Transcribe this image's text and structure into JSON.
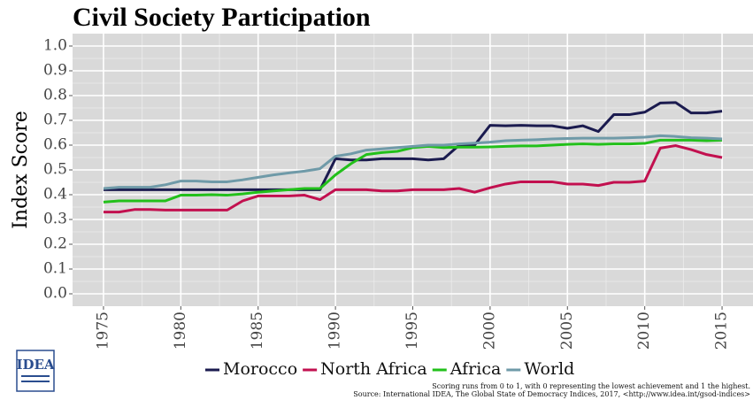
{
  "chart_data": {
    "type": "line",
    "title": "Civil Society Participation",
    "y_label": "Index Score",
    "logo": "IDEA",
    "notes": [
      "Scoring runs from 0 to 1, with 0 representing the lowest achievement and 1 the highest.",
      "Source: International IDEA, The Global State of Democracy Indices, 2017, <http://www.idea.int/gsod-indices>"
    ],
    "x": [
      1975,
      1976,
      1977,
      1978,
      1979,
      1980,
      1981,
      1982,
      1983,
      1984,
      1985,
      1986,
      1987,
      1988,
      1989,
      1990,
      1991,
      1992,
      1993,
      1994,
      1995,
      1996,
      1997,
      1998,
      1999,
      2000,
      2001,
      2002,
      2003,
      2004,
      2005,
      2006,
      2007,
      2008,
      2009,
      2010,
      2011,
      2012,
      2013,
      2014,
      2015
    ],
    "xlim": [
      1973,
      2017
    ],
    "xticks": [
      1975,
      1980,
      1985,
      1990,
      1995,
      2000,
      2005,
      2010,
      2015
    ],
    "ylim": [
      -0.05,
      1.05
    ],
    "yticks": [
      {
        "value": 0,
        "label": "0.0"
      },
      0.1,
      0.2,
      0.3,
      0.4,
      0.5,
      0.6,
      0.7,
      0.8,
      0.9,
      {
        "value": 1,
        "label": "1.0"
      }
    ],
    "grid": true,
    "legend": "bottom",
    "series": [
      {
        "name": "Morocco",
        "color": "#1b1b4f",
        "values": [
          0.42,
          0.42,
          0.42,
          0.42,
          0.42,
          0.42,
          0.42,
          0.42,
          0.42,
          0.42,
          0.42,
          0.42,
          0.42,
          0.42,
          0.42,
          0.545,
          0.54,
          0.54,
          0.545,
          0.545,
          0.545,
          0.54,
          0.545,
          0.6,
          0.6,
          0.68,
          0.678,
          0.68,
          0.678,
          0.678,
          0.668,
          0.678,
          0.655,
          0.723,
          0.723,
          0.733,
          0.77,
          0.772,
          0.73,
          0.73,
          0.737
        ]
      },
      {
        "name": "North Africa",
        "color": "#c2104f",
        "values": [
          0.33,
          0.33,
          0.34,
          0.34,
          0.338,
          0.338,
          0.338,
          0.338,
          0.338,
          0.375,
          0.395,
          0.395,
          0.395,
          0.398,
          0.38,
          0.42,
          0.42,
          0.42,
          0.415,
          0.415,
          0.42,
          0.42,
          0.42,
          0.425,
          0.41,
          0.428,
          0.443,
          0.452,
          0.452,
          0.452,
          0.443,
          0.443,
          0.437,
          0.45,
          0.45,
          0.455,
          0.588,
          0.598,
          0.582,
          0.562,
          0.55
        ]
      },
      {
        "name": "Africa",
        "color": "#22c01a",
        "values": [
          0.37,
          0.375,
          0.375,
          0.375,
          0.375,
          0.398,
          0.398,
          0.4,
          0.398,
          0.403,
          0.41,
          0.415,
          0.42,
          0.425,
          0.425,
          0.48,
          0.525,
          0.562,
          0.57,
          0.575,
          0.59,
          0.595,
          0.59,
          0.592,
          0.592,
          0.593,
          0.595,
          0.597,
          0.597,
          0.6,
          0.603,
          0.605,
          0.603,
          0.605,
          0.605,
          0.607,
          0.62,
          0.62,
          0.62,
          0.618,
          0.62
        ]
      },
      {
        "name": "World",
        "color": "#6f9aa8",
        "values": [
          0.425,
          0.43,
          0.43,
          0.43,
          0.44,
          0.455,
          0.455,
          0.452,
          0.452,
          0.46,
          0.47,
          0.48,
          0.488,
          0.495,
          0.505,
          0.555,
          0.565,
          0.58,
          0.585,
          0.59,
          0.595,
          0.6,
          0.6,
          0.605,
          0.608,
          0.612,
          0.618,
          0.62,
          0.622,
          0.625,
          0.627,
          0.628,
          0.628,
          0.628,
          0.63,
          0.632,
          0.638,
          0.635,
          0.63,
          0.628,
          0.625
        ]
      }
    ]
  }
}
